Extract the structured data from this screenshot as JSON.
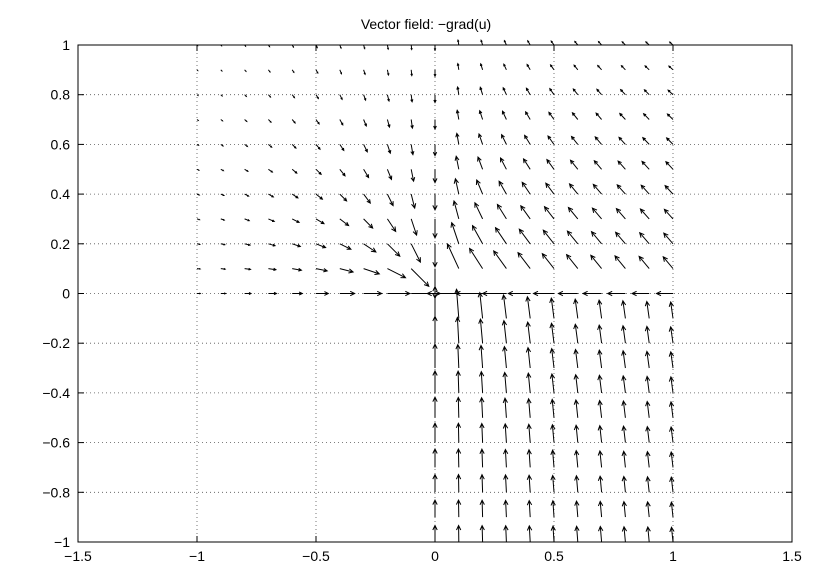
{
  "chart_data": {
    "type": "quiver",
    "title": "Vector field: −grad(u)",
    "xlabel": "",
    "ylabel": "",
    "xlim": [
      -1.5,
      1.5
    ],
    "ylim": [
      -1,
      1
    ],
    "x_ticks": [
      -1.5,
      -1,
      -0.5,
      0,
      0.5,
      1,
      1.5
    ],
    "y_ticks": [
      -1,
      -0.8,
      -0.6,
      -0.4,
      -0.2,
      0,
      0.2,
      0.4,
      0.6,
      0.8,
      1
    ],
    "x_tick_labels": [
      "−1.5",
      "−1",
      "−0.5",
      "0",
      "0.5",
      "1",
      "1.5"
    ],
    "y_tick_labels": [
      "−1",
      "−0.8",
      "−0.6",
      "−0.4",
      "−0.2",
      "0",
      "0.2",
      "0.4",
      "0.6",
      "0.8",
      "1"
    ],
    "grid": true,
    "domain": "L-shaped region: [-1,1]x[0,1] union [0,1]x[-1,0]",
    "grid_spacing": 0.1,
    "field_description": "Gradient flow converging toward the reentrant corner at (0,0); vectors are small near the left boundary (x=-1) and near y=1, growing larger near the corner; in lower region vectors point upward along the vertical channel."
  }
}
